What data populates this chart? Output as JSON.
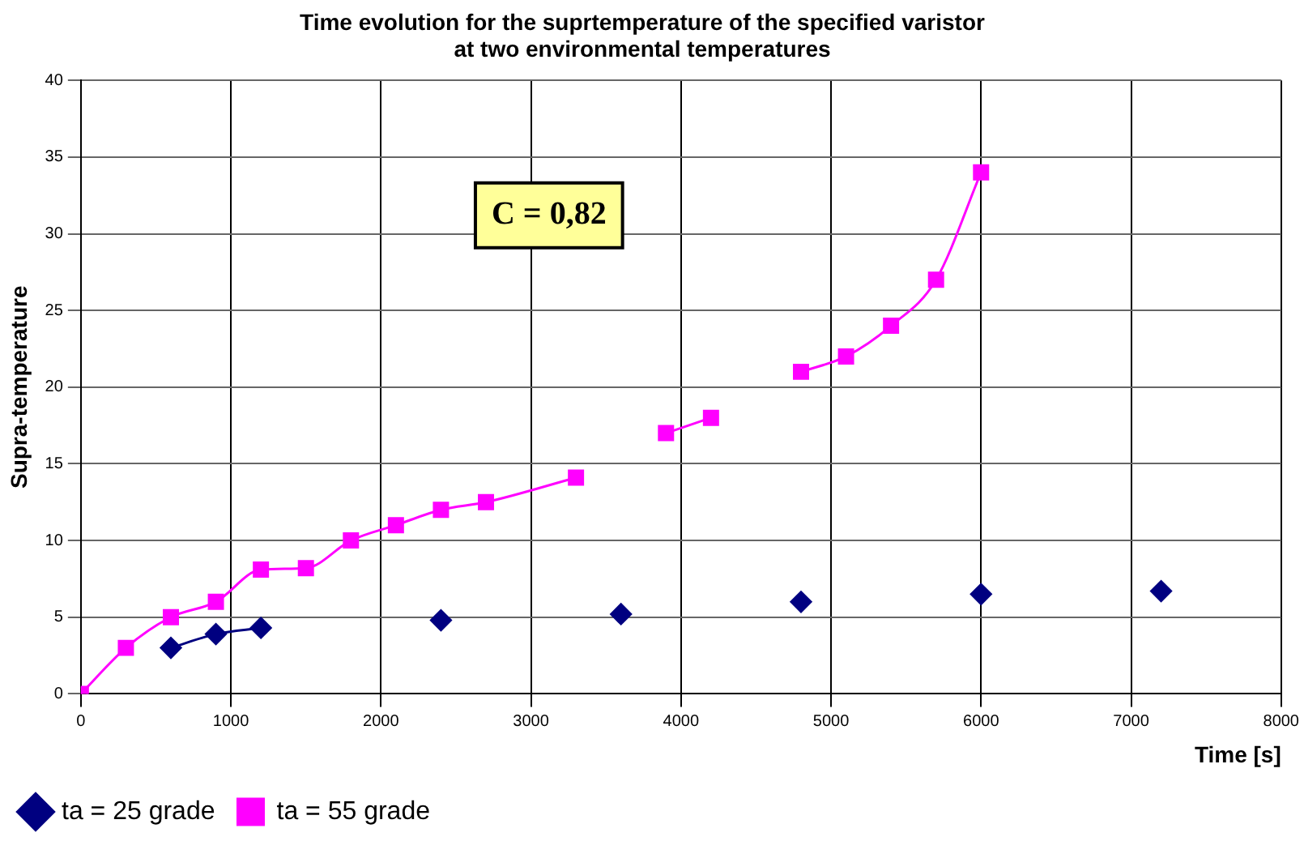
{
  "chart_data": {
    "type": "line",
    "title": "Time evolution for the suprtemperature of the specified varistor\nat two environmental temperatures",
    "xlabel": "Time [s]",
    "ylabel": "Supra-temperature",
    "annotations": [
      "C = 0,82"
    ],
    "xlim": [
      0,
      8000
    ],
    "xticks": [
      0,
      1000,
      2000,
      3000,
      4000,
      5000,
      6000,
      7000,
      8000
    ],
    "ylim": [
      0,
      40
    ],
    "yticks": [
      0,
      5,
      10,
      15,
      20,
      25,
      30,
      35,
      40
    ],
    "grid": true,
    "legend": "bottom left",
    "series": [
      {
        "name": "ta = 25 grade",
        "color": "#000080",
        "marker": "diamond",
        "x": [
          600,
          900,
          1200,
          1800,
          2400,
          3000,
          3600,
          4200,
          4800,
          5400,
          6000,
          6600,
          7200
        ],
        "values": [
          3,
          3.9,
          4.3,
          null,
          4.8,
          null,
          5.2,
          null,
          6,
          null,
          6.5,
          null,
          6.7
        ]
      },
      {
        "name": "ta = 55 grade",
        "color": "#ff00ff",
        "marker": "square",
        "x": [
          0,
          300,
          600,
          900,
          1200,
          1500,
          1800,
          2100,
          2400,
          2700,
          3300,
          3600,
          3900,
          4200,
          4500,
          4800,
          5100,
          5400,
          5700,
          6000
        ],
        "values": [
          0,
          3,
          5,
          6,
          8.1,
          8.2,
          10,
          11,
          12,
          12.5,
          14.1,
          null,
          17,
          18,
          null,
          21,
          22,
          24,
          27,
          34
        ]
      }
    ]
  }
}
